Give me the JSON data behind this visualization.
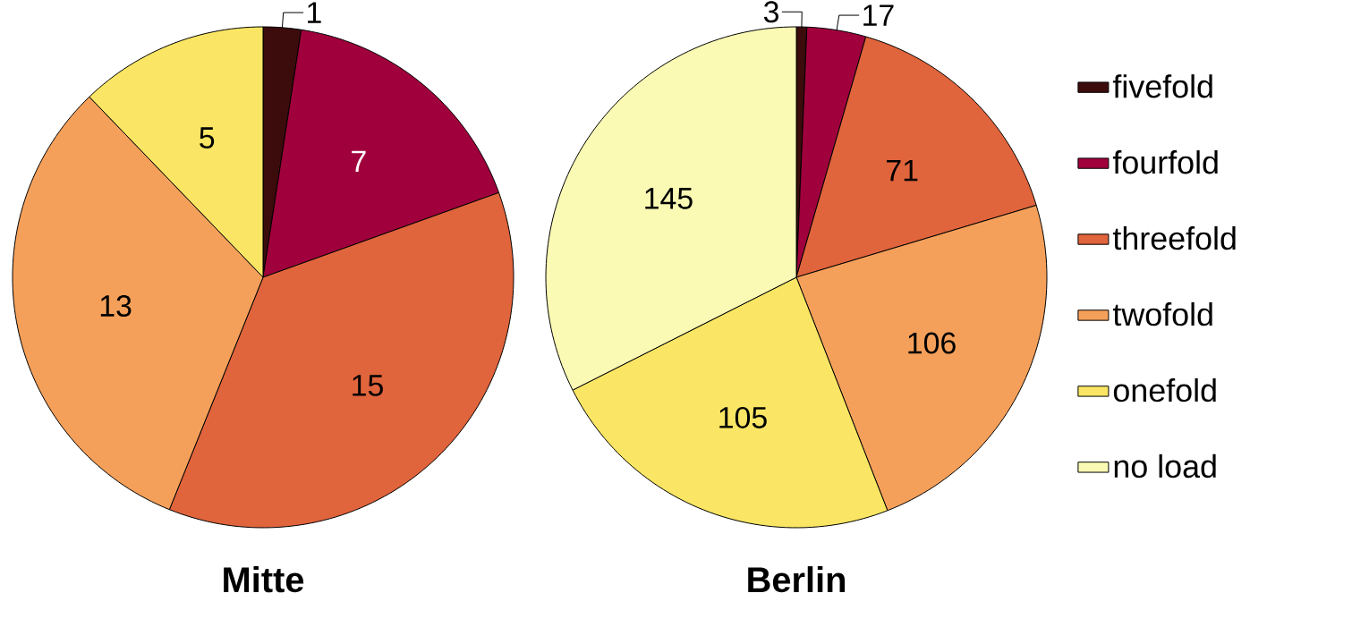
{
  "chart_data": [
    {
      "type": "pie",
      "title": "Mitte",
      "categories": [
        null,
        null,
        null,
        null,
        null
      ],
      "values": [
        1,
        7,
        15,
        13,
        5
      ],
      "colors": [
        "#3c0c0c",
        "#a0003c",
        "#e0643c",
        "#f5a05a",
        "#fae664"
      ],
      "data_labels": true,
      "legend": false
    },
    {
      "type": "pie",
      "title": "Berlin",
      "categories": [
        "fivefold",
        "fourfold",
        "threefold",
        "twofold",
        "onefold",
        "no load"
      ],
      "values": [
        3,
        17,
        71,
        106,
        105,
        145
      ],
      "colors": [
        "#3c0c0c",
        "#a0003c",
        "#e0643c",
        "#f5a05a",
        "#fae664",
        "#fafab4"
      ],
      "data_labels": true,
      "legend": "right"
    }
  ]
}
